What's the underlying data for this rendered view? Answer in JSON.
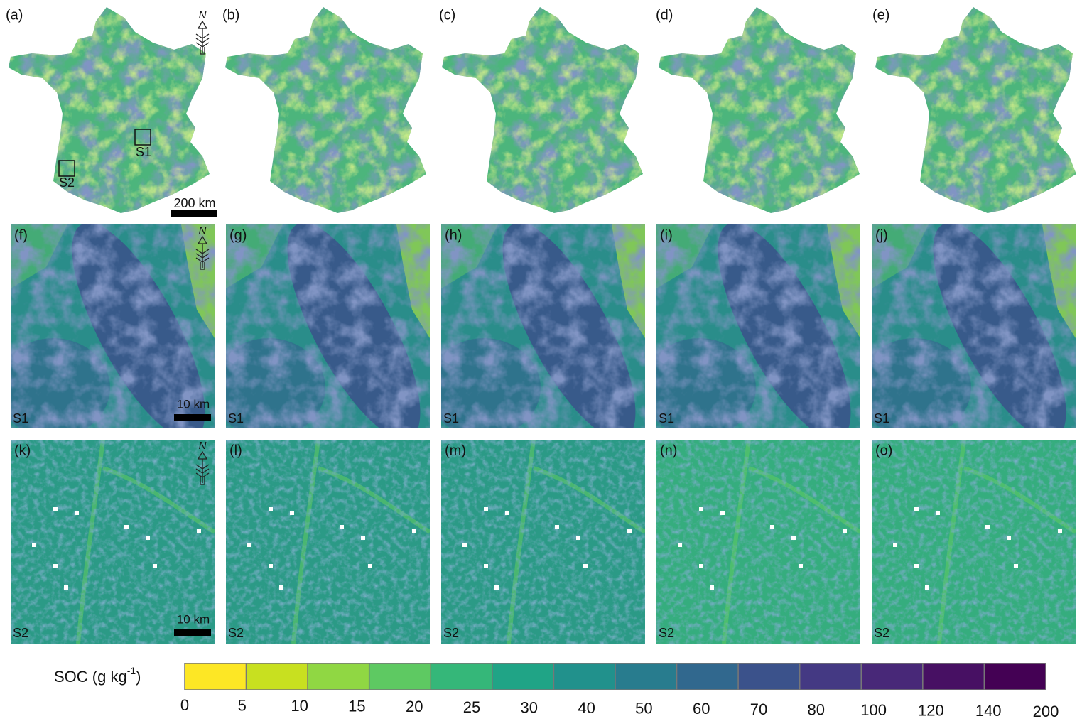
{
  "rows": [
    {
      "panels": [
        "(a)",
        "(b)",
        "(c)",
        "(d)",
        "(e)"
      ]
    },
    {
      "panels": [
        "(f)",
        "(g)",
        "(h)",
        "(i)",
        "(j)"
      ]
    },
    {
      "panels": [
        "(k)",
        "(l)",
        "(m)",
        "(n)",
        "(o)"
      ]
    }
  ],
  "north_label": "N",
  "scale_bars": {
    "country": "200 km",
    "site": "10 km"
  },
  "sites": [
    "S1",
    "S2"
  ],
  "colorbar": {
    "label_main": "SOC (g kg",
    "label_sup": "-1",
    "label_end": ")",
    "ticks": [
      0,
      5,
      10,
      15,
      20,
      25,
      30,
      40,
      50,
      60,
      70,
      80,
      100,
      120,
      140,
      200
    ],
    "colors": [
      "#fde725",
      "#c8e020",
      "#90d743",
      "#5ec962",
      "#35b779",
      "#20a486",
      "#21918c",
      "#287c8e",
      "#31688e",
      "#3b528b",
      "#443983",
      "#482878",
      "#471063",
      "#440154"
    ]
  }
}
